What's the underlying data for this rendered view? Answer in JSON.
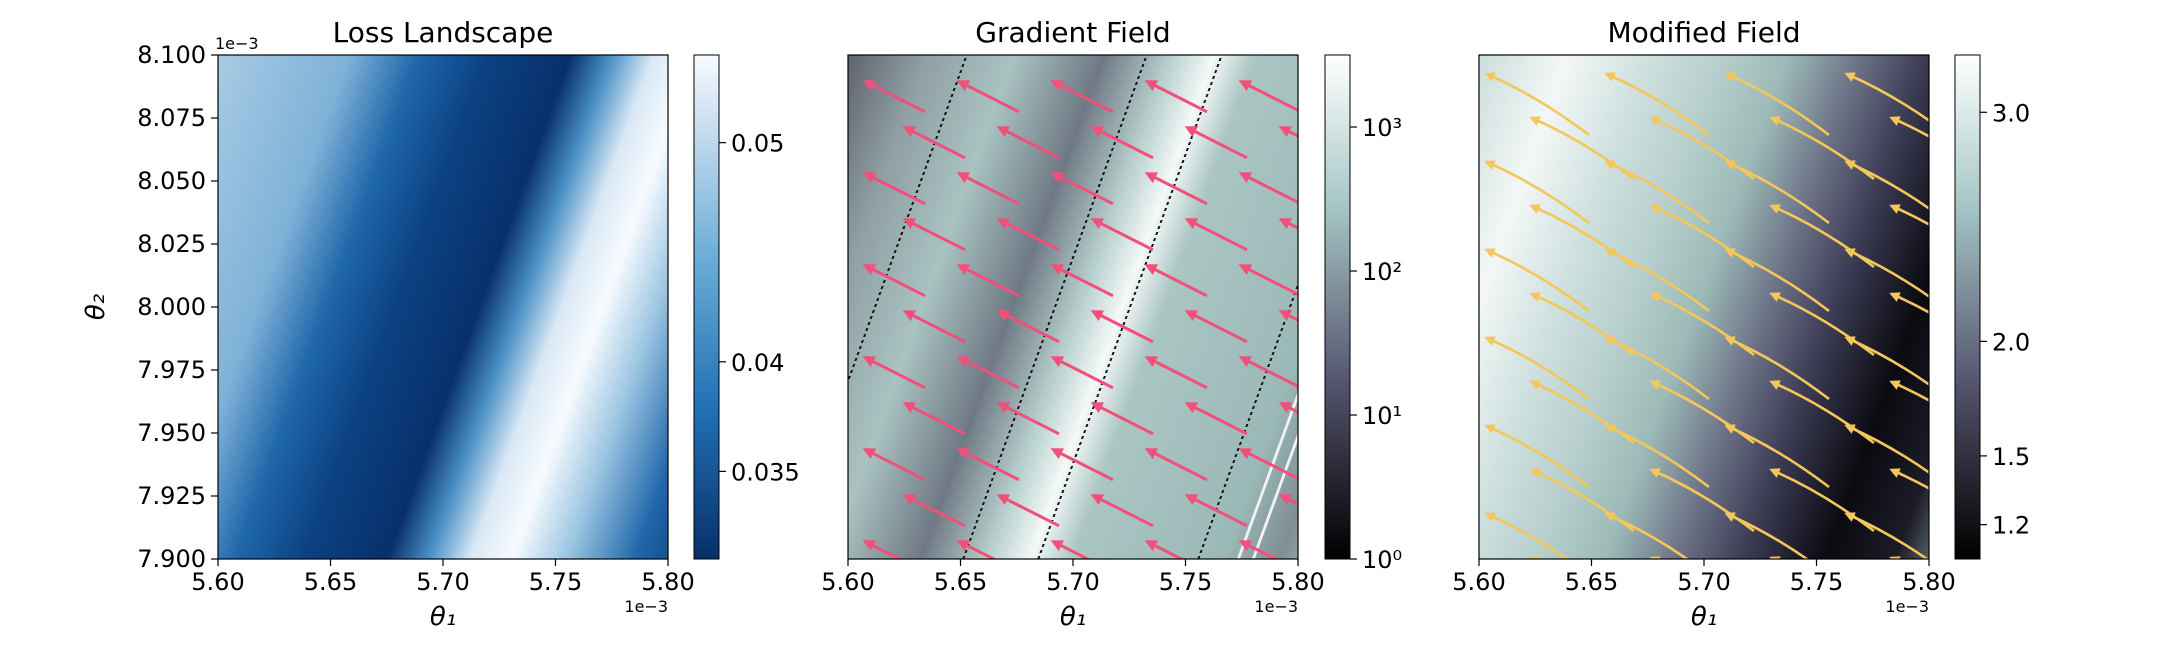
{
  "figure": {
    "background": "#ffffff"
  },
  "chart_data": [
    {
      "type": "heatmap",
      "title": "Loss Landscape",
      "xlabel": "θ₁",
      "ylabel": "θ₂",
      "xlim": [
        0.0056,
        0.0058
      ],
      "ylim": [
        0.0079,
        0.0081
      ],
      "x_ticks": [
        "5.60",
        "5.65",
        "5.70",
        "5.75",
        "5.80"
      ],
      "x_tick_values": [
        5.6,
        5.65,
        5.7,
        5.75,
        5.8
      ],
      "y_ticks": [
        "7.900",
        "7.925",
        "7.950",
        "7.975",
        "8.000",
        "8.025",
        "8.050",
        "8.075",
        "8.100"
      ],
      "y_tick_values": [
        7.9,
        7.925,
        7.95,
        7.975,
        8.0,
        8.025,
        8.05,
        8.075,
        8.1
      ],
      "x_offset": "1e−3",
      "y_offset": "1e−3",
      "colormap": "Blues_r",
      "colorbar_ticks": [
        "0.05",
        "0.04",
        "0.035"
      ],
      "colorbar_tick_values": [
        0.05,
        0.04,
        0.035
      ],
      "colorbar_range": [
        0.031,
        0.054
      ],
      "colors": {
        "low": "#08306b",
        "high": "#f7fbff"
      }
    },
    {
      "type": "heatmap",
      "title": "Gradient Field",
      "xlabel": "θ₁",
      "xlim": [
        0.0056,
        0.0058
      ],
      "ylim": [
        0.0079,
        0.0081
      ],
      "x_ticks": [
        "5.60",
        "5.65",
        "5.70",
        "5.75",
        "5.80"
      ],
      "x_tick_values": [
        5.6,
        5.65,
        5.7,
        5.75,
        5.8
      ],
      "x_offset": "1e−3",
      "colormap": "bone",
      "colorbar_scale": "log",
      "colorbar_ticks": [
        "10⁰",
        "10¹",
        "10²",
        "10³"
      ],
      "colorbar_tick_values": [
        0,
        1,
        2,
        3
      ],
      "colorbar_range": [
        0,
        3.5
      ],
      "overlay": "quiver-like streamlines",
      "colors": {
        "arrows": "#f0507a"
      }
    },
    {
      "type": "heatmap",
      "title": "Modified Field",
      "xlabel": "θ₁",
      "xlim": [
        0.0056,
        0.0058
      ],
      "ylim": [
        0.0079,
        0.0081
      ],
      "x_ticks": [
        "5.60",
        "5.65",
        "5.70",
        "5.75",
        "5.80"
      ],
      "x_tick_values": [
        5.6,
        5.65,
        5.7,
        5.75,
        5.8
      ],
      "x_offset": "1e−3",
      "colormap": "bone",
      "colorbar_ticks": [
        "3.0",
        "2.0",
        "1.5",
        "1.2"
      ],
      "colorbar_tick_values": [
        3.0,
        2.0,
        1.5,
        1.2
      ],
      "colorbar_range": [
        1.05,
        3.25
      ],
      "overlay": "streamlines",
      "colors": {
        "arrows": "#f5c65a"
      }
    }
  ]
}
